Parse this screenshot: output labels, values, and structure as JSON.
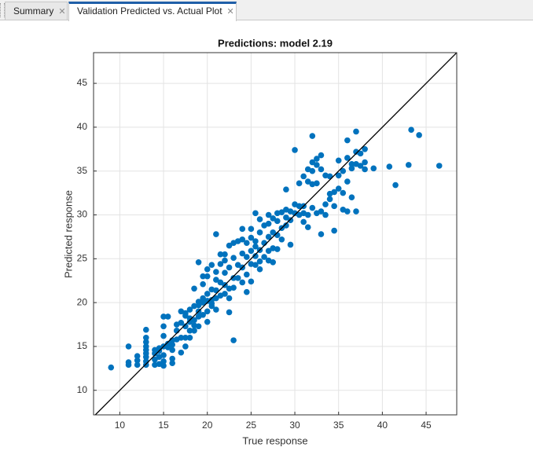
{
  "tabs": [
    {
      "label": "Summary"
    },
    {
      "label": "Validation Predicted vs. Actual Plot"
    }
  ],
  "chart_data": {
    "type": "scatter",
    "title": "Predictions: model 2.19",
    "x_label": "True response",
    "y_label": "Predicted response",
    "color": "#0072bd",
    "grid": true,
    "xlim": [
      7,
      48.5
    ],
    "ylim": [
      7.2,
      48.5
    ],
    "xticks": [
      10,
      15,
      20,
      25,
      30,
      35,
      40,
      45
    ],
    "yticks": [
      10,
      15,
      20,
      25,
      30,
      35,
      40,
      45
    ],
    "x": [
      9,
      11,
      11,
      11,
      12,
      12,
      12,
      13,
      13,
      13,
      13,
      13,
      13,
      13,
      13,
      13,
      14,
      14,
      14,
      14,
      14.5,
      14.5,
      14.5,
      14.5,
      15,
      15,
      15,
      15,
      15,
      15,
      15,
      15.5,
      15.5,
      15.5,
      16,
      16,
      16,
      16,
      16,
      16.5,
      16.5,
      16.5,
      17,
      17,
      17,
      17,
      17.5,
      17.5,
      17.5,
      17.5,
      17.5,
      18,
      18,
      18,
      18,
      18,
      18.5,
      18.5,
      18.5,
      18.5,
      18.5,
      19,
      19,
      19,
      19,
      19,
      19,
      19.5,
      19.5,
      19.5,
      19.5,
      19.5,
      20,
      20,
      20,
      20,
      20,
      20,
      20.5,
      20.5,
      20.5,
      20.5,
      20.5,
      21,
      21,
      21,
      21,
      21,
      21,
      21.5,
      21.5,
      21.5,
      21.5,
      22,
      22,
      22,
      22,
      22,
      22.5,
      22.5,
      22.5,
      22.5,
      22.5,
      23,
      23,
      23,
      23,
      23,
      23.5,
      23.5,
      23.5,
      24,
      24,
      24,
      24,
      24,
      24.5,
      24.5,
      24.5,
      24.5,
      25,
      25,
      25,
      25,
      25,
      25.5,
      25.5,
      25.5,
      25.5,
      25.5,
      26,
      26,
      26,
      26,
      26,
      26.5,
      26.5,
      26.5,
      27,
      27,
      27,
      27,
      27,
      27.5,
      27.5,
      27.5,
      27.5,
      28,
      28,
      28,
      28,
      28.5,
      28.5,
      28.5,
      29,
      29,
      29,
      29,
      29.5,
      29.5,
      29.5,
      30,
      30,
      30,
      30.5,
      30.5,
      30.5,
      31,
      31,
      31,
      31,
      31.5,
      31.5,
      31.5,
      31.5,
      32,
      32,
      32,
      32,
      32,
      32.5,
      32.5,
      32.5,
      32.5,
      33,
      33,
      33,
      33,
      33.5,
      33.5,
      33.5,
      34,
      34,
      34,
      34.5,
      34.5,
      34.5,
      35,
      35,
      35,
      35.5,
      35.5,
      35.5,
      36,
      36,
      36,
      36,
      36.5,
      36.5,
      36.5,
      37,
      37,
      37,
      37,
      37.5,
      37.5,
      38,
      38,
      38,
      39,
      40.8,
      41.5,
      43,
      43.3,
      44.2,
      46.5
    ],
    "values": [
      12.6,
      15.0,
      12.9,
      13.2,
      12.9,
      13.4,
      13.9,
      12.9,
      13.3,
      13.8,
      14.2,
      14.6,
      15.0,
      15.5,
      16.0,
      16.9,
      12.9,
      13.5,
      14.2,
      14.6,
      13.0,
      13.8,
      14.5,
      14.8,
      12.8,
      13.3,
      14.0,
      15.0,
      16.2,
      17.3,
      18.4,
      14.9,
      15.3,
      18.4,
      13.1,
      13.6,
      14.6,
      15.2,
      15.7,
      15.8,
      16.8,
      17.5,
      14.3,
      16.0,
      17.7,
      19.0,
      15.0,
      16.0,
      17.3,
      18.5,
      18.8,
      16.0,
      16.8,
      17.8,
      18.2,
      19.2,
      16.8,
      17.4,
      18.0,
      19.6,
      21.6,
      17.3,
      18.4,
      19.0,
      19.7,
      20.1,
      24.6,
      18.6,
      20.0,
      20.5,
      22.1,
      23.0,
      17.8,
      19.0,
      20.2,
      21.0,
      23.0,
      23.8,
      19.6,
      19.9,
      20.3,
      21.5,
      24.3,
      19.2,
      20.5,
      21.4,
      22.6,
      23.5,
      27.8,
      20.8,
      22.3,
      24.4,
      25.5,
      21.0,
      22.0,
      23.4,
      24.8,
      25.5,
      18.9,
      20.5,
      21.6,
      24.0,
      26.5,
      15.7,
      21.7,
      22.8,
      25.1,
      26.8,
      22.8,
      24.3,
      27.0,
      22.3,
      24.0,
      25.6,
      27.2,
      28.4,
      21.2,
      23.2,
      25.2,
      26.8,
      22.4,
      24.4,
      25.9,
      27.4,
      28.4,
      24.3,
      25.3,
      26.4,
      27.0,
      30.2,
      23.8,
      24.7,
      26.0,
      28.0,
      29.5,
      25.2,
      26.8,
      28.8,
      24.8,
      25.9,
      27.5,
      29.0,
      30.0,
      24.6,
      26.2,
      28.0,
      29.6,
      26.1,
      27.7,
      29.3,
      30.2,
      27.2,
      28.5,
      30.3,
      28.8,
      29.7,
      30.6,
      32.9,
      26.6,
      29.4,
      30.4,
      30.2,
      31.2,
      37.4,
      30.0,
      31.0,
      33.6,
      29.2,
      30.2,
      31.0,
      34.4,
      28.6,
      30.0,
      33.8,
      35.2,
      30.8,
      33.5,
      35.0,
      36.0,
      39.0,
      30.2,
      33.6,
      35.7,
      36.4,
      27.8,
      30.4,
      35.2,
      36.8,
      30.0,
      31.2,
      34.5,
      31.8,
      32.4,
      34.4,
      28.2,
      31.0,
      32.6,
      33.0,
      34.5,
      36.2,
      30.6,
      32.5,
      35.0,
      30.4,
      33.8,
      36.5,
      38.5,
      32.0,
      35.3,
      35.8,
      30.4,
      35.8,
      37.2,
      39.5,
      35.6,
      37.0,
      36.0,
      37.5,
      35.2,
      35.3,
      35.5,
      33.4,
      35.7,
      39.7,
      39.1,
      35.6
    ]
  }
}
